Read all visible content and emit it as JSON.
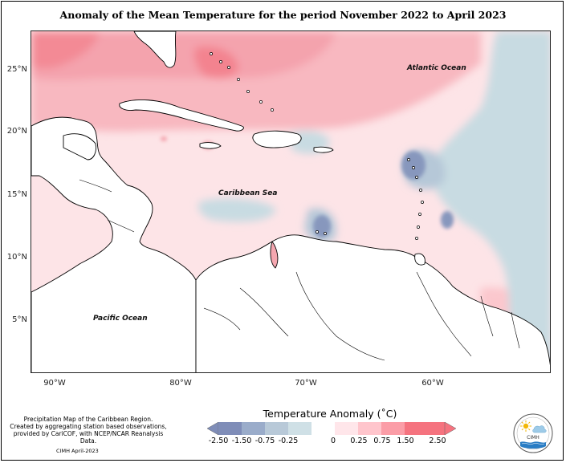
{
  "title": "Anomaly of the Mean Temperature for the period November 2022 to April 2023",
  "map": {
    "lat_labels": [
      "25°N",
      "20°N",
      "15°N",
      "10°N",
      "5°N"
    ],
    "lon_labels": [
      "90°W",
      "80°W",
      "70°W",
      "60°W"
    ],
    "places": {
      "atlantic": "Atlantic Ocean",
      "caribbean": "Caribbean Sea",
      "pacific": "Pacific Ocean"
    },
    "extent": {
      "lon": [
        -92,
        -50
      ],
      "lat": [
        2,
        28
      ]
    }
  },
  "legend": {
    "title": "Temperature Anomaly (˚C)",
    "ticks": [
      "-2.50",
      "-1.50",
      "-0.75",
      "-0.25",
      "0",
      "0.25",
      "0.75",
      "1.50",
      "2.50"
    ],
    "colors": [
      "#7f8db8",
      "#9aacca",
      "#b8c9d8",
      "#cfe0e6",
      "#ffffff",
      "#ffe6ea",
      "#ffc5cc",
      "#fb9da7",
      "#f5737f"
    ]
  },
  "note": {
    "line1": "Precipitation Map of the Caribbean Region.",
    "line2": "Created by aggregating station based observations,",
    "line3": "provided by CariCOF, with NCEP/NCAR Reanalysis Data.",
    "credit": "CIMH April-2023"
  },
  "logo": {
    "text": "CIMH"
  }
}
